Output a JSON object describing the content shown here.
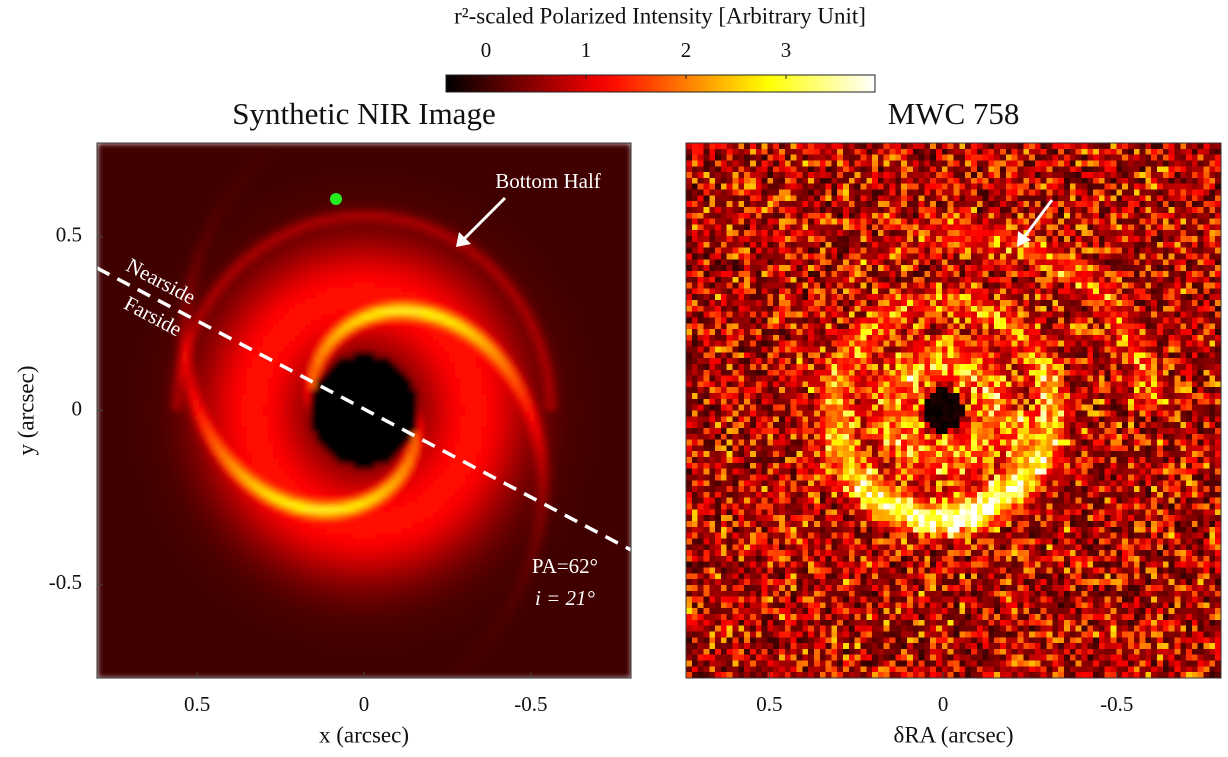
{
  "colorbar": {
    "label": "r²-scaled Polarized Intensity [Arbitrary Unit]",
    "clim": [
      -0.4,
      3.89
    ],
    "ticks": [
      0,
      1,
      2,
      3
    ]
  },
  "chart_data": [
    {
      "type": "image",
      "title": "Synthetic NIR Image",
      "xlabel": "x (arcsec)",
      "ylabel": "y (arcsec)",
      "xlim": [
        0.8,
        -0.8
      ],
      "ylim": [
        -0.77,
        0.77
      ],
      "xticks": [
        0.5,
        0,
        -0.5
      ],
      "yticks": [
        0.5,
        0,
        -0.5
      ],
      "annotations": [
        "Bottom Half",
        "Nearside",
        "Farside",
        "PA=62°",
        "i = 21°"
      ]
    },
    {
      "type": "image",
      "title": "MWC 758",
      "xlabel": "δRA (arcsec)",
      "xlim": [
        0.74,
        -0.8
      ],
      "ylim": [
        -0.77,
        0.77
      ],
      "xticks": [
        0.5,
        0,
        -0.5
      ]
    }
  ]
}
